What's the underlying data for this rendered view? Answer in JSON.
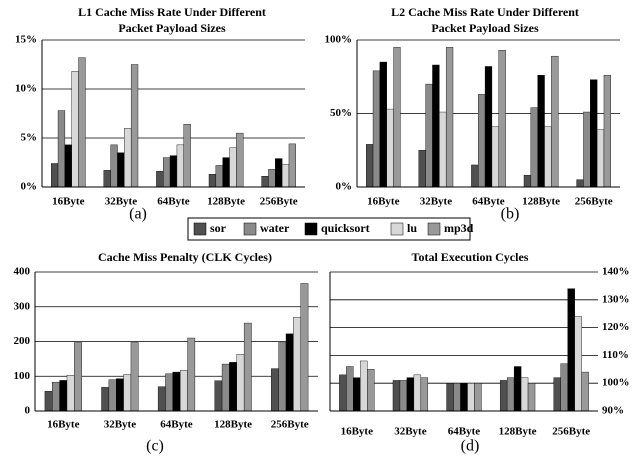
{
  "chart_data": [
    {
      "type": "bar",
      "title": [
        "L1 Cache Miss Rate Under Different",
        "Packet Payload Sizes"
      ],
      "label": "(a)",
      "categories": [
        "16Byte",
        "32Byte",
        "64Byte",
        "128Byte",
        "256Byte"
      ],
      "series": [
        {
          "name": "sor",
          "color": "#505050",
          "values": [
            2.4,
            1.7,
            1.6,
            1.3,
            1.1
          ]
        },
        {
          "name": "water",
          "color": "#8a8a8a",
          "values": [
            7.8,
            4.3,
            3.0,
            2.2,
            1.8
          ]
        },
        {
          "name": "quicksort",
          "color": "#000000",
          "values": [
            4.3,
            3.5,
            3.2,
            3.0,
            2.9
          ]
        },
        {
          "name": "lu",
          "color": "#d8d8d8",
          "values": [
            11.8,
            6.0,
            4.3,
            4.0,
            2.3
          ]
        },
        {
          "name": "mp3d",
          "color": "#999999",
          "values": [
            13.2,
            12.5,
            6.4,
            5.5,
            4.4
          ]
        }
      ],
      "ylim": [
        0,
        15
      ],
      "yticks": [
        {
          "value": 0,
          "label": "0%"
        },
        {
          "value": 5,
          "label": "5%"
        },
        {
          "value": 10,
          "label": "10%"
        },
        {
          "value": 15,
          "label": "15%"
        }
      ],
      "grid": true,
      "axis_side": "left"
    },
    {
      "type": "bar",
      "title": [
        "L2 Cache Miss Rate Under Different",
        "Packet Payload Sizes"
      ],
      "label": "(b)",
      "categories": [
        "16Byte",
        "32Byte",
        "64Byte",
        "128Byte",
        "256Byte"
      ],
      "series": [
        {
          "name": "sor",
          "color": "#505050",
          "values": [
            29,
            25,
            15,
            8,
            5
          ]
        },
        {
          "name": "water",
          "color": "#8a8a8a",
          "values": [
            79,
            70,
            63,
            54,
            51
          ]
        },
        {
          "name": "quicksort",
          "color": "#000000",
          "values": [
            85,
            83,
            82,
            76,
            73
          ]
        },
        {
          "name": "lu",
          "color": "#d8d8d8",
          "values": [
            53,
            51,
            41,
            41,
            39
          ]
        },
        {
          "name": "mp3d",
          "color": "#999999",
          "values": [
            95,
            95,
            93,
            89,
            76
          ]
        }
      ],
      "ylim": [
        0,
        100
      ],
      "yticks": [
        {
          "value": 0,
          "label": "0%"
        },
        {
          "value": 50,
          "label": "50%"
        },
        {
          "value": 100,
          "label": "100%"
        }
      ],
      "grid": true,
      "axis_side": "left"
    },
    {
      "type": "bar",
      "title": [
        "Cache Miss Penalty (CLK Cycles)"
      ],
      "label": "(c)",
      "categories": [
        "16Byte",
        "32Byte",
        "64Byte",
        "128Byte",
        "256Byte"
      ],
      "series": [
        {
          "name": "sor",
          "color": "#505050",
          "values": [
            57,
            68,
            70,
            87,
            122
          ]
        },
        {
          "name": "water",
          "color": "#8a8a8a",
          "values": [
            83,
            90,
            107,
            135,
            197
          ]
        },
        {
          "name": "quicksort",
          "color": "#000000",
          "values": [
            88,
            93,
            112,
            140,
            222
          ]
        },
        {
          "name": "lu",
          "color": "#d8d8d8",
          "values": [
            103,
            105,
            117,
            163,
            270
          ]
        },
        {
          "name": "mp3d",
          "color": "#999999",
          "values": [
            197,
            197,
            210,
            253,
            367
          ]
        }
      ],
      "ylim": [
        0,
        400
      ],
      "yticks": [
        0,
        100,
        200,
        300,
        400
      ],
      "grid": true,
      "axis_side": "left"
    },
    {
      "type": "bar",
      "title": [
        "Total Execution Cycles"
      ],
      "label": "(d)",
      "categories": [
        "16Byte",
        "32Byte",
        "64Byte",
        "128Byte",
        "256Byte"
      ],
      "series": [
        {
          "name": "sor",
          "color": "#505050",
          "values": [
            103,
            101,
            100,
            101,
            102
          ]
        },
        {
          "name": "water",
          "color": "#8a8a8a",
          "values": [
            106,
            101,
            100,
            102,
            107
          ]
        },
        {
          "name": "quicksort",
          "color": "#000000",
          "values": [
            102,
            102,
            100,
            106,
            134
          ]
        },
        {
          "name": "lu",
          "color": "#d8d8d8",
          "values": [
            108,
            103,
            100,
            102,
            124
          ]
        },
        {
          "name": "mp3d",
          "color": "#999999",
          "values": [
            105,
            102,
            100,
            100,
            104
          ]
        }
      ],
      "ylim": [
        90,
        140
      ],
      "yticks": [
        {
          "value": 90,
          "label": "90%"
        },
        {
          "value": 100,
          "label": "100%"
        },
        {
          "value": 110,
          "label": "110%"
        },
        {
          "value": 120,
          "label": "120%"
        },
        {
          "value": 130,
          "label": "130%"
        },
        {
          "value": 140,
          "label": "140%"
        }
      ],
      "grid": true,
      "axis_side": "right"
    }
  ]
}
